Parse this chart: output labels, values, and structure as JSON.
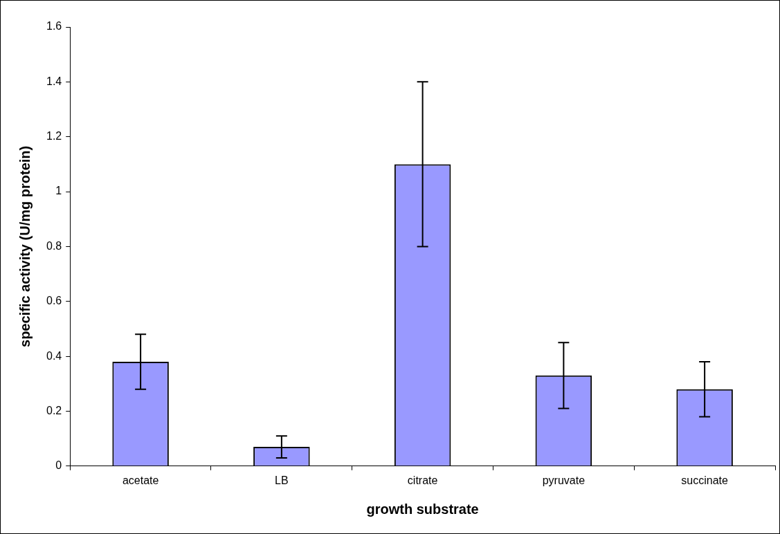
{
  "chart_data": {
    "type": "bar",
    "xlabel": "growth substrate",
    "ylabel": "specific activity (U/mg protein)",
    "categories": [
      "acetate",
      "LB",
      "citrate",
      "pyruvate",
      "succinate"
    ],
    "values": [
      0.38,
      0.07,
      1.1,
      0.33,
      0.28
    ],
    "errors": [
      0.1,
      0.04,
      0.3,
      0.12,
      0.1
    ],
    "color": "#9999ff",
    "ylim": [
      0,
      1.6
    ],
    "yticks": [
      0,
      0.2,
      0.4,
      0.6,
      0.8,
      1,
      1.2,
      1.4,
      1.6
    ],
    "grid": false,
    "legend": false
  }
}
